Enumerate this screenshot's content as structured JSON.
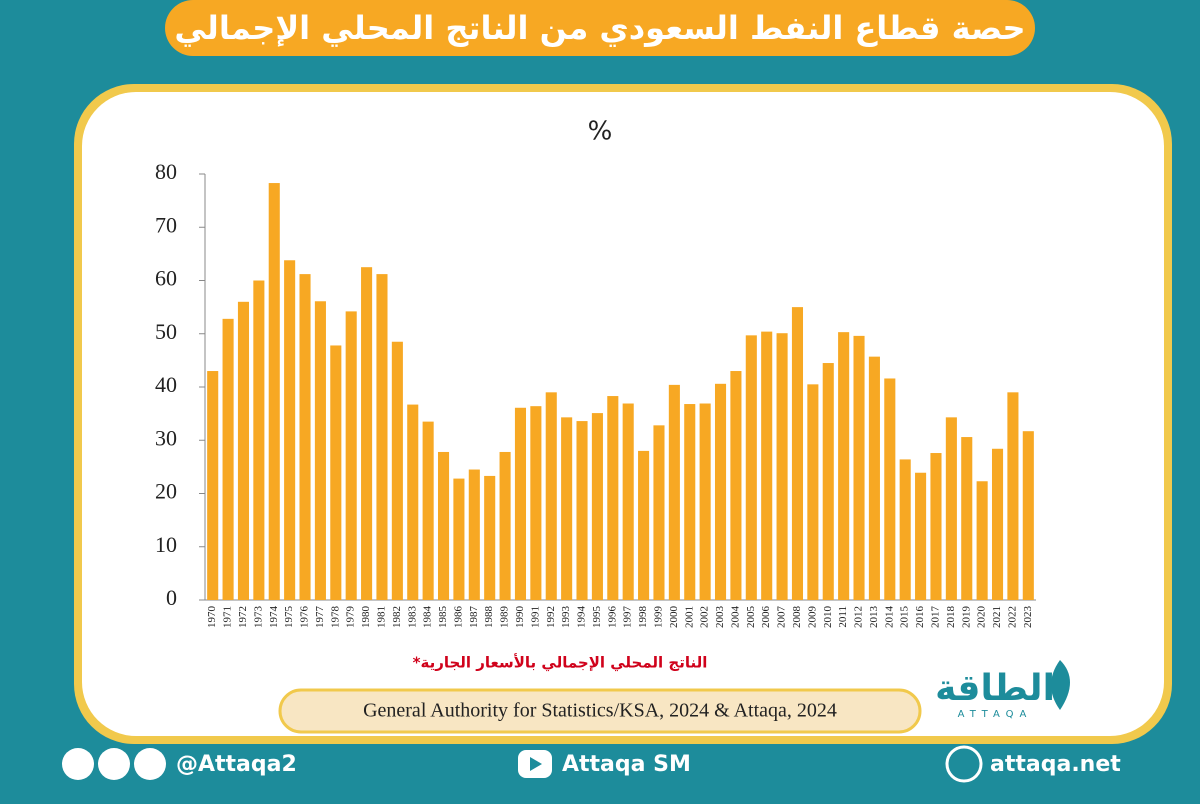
{
  "chart_data": {
    "type": "bar",
    "title": "حصة قطاع النفط السعودي من الناتج المحلي الإجمالي",
    "y_label": "%",
    "note": "*الناتج المحلي الإجمالي بالأسعار الجارية",
    "source": "General Authority for Statistics/KSA, 2024 & Attaqa, 2024",
    "categories": [
      "1970",
      "1971",
      "1972",
      "1973",
      "1974",
      "1975",
      "1976",
      "1977",
      "1978",
      "1979",
      "1980",
      "1981",
      "1982",
      "1983",
      "1984",
      "1985",
      "1986",
      "1987",
      "1988",
      "1989",
      "1990",
      "1991",
      "1992",
      "1993",
      "1994",
      "1995",
      "1996",
      "1997",
      "1998",
      "1999",
      "2000",
      "2001",
      "2002",
      "2003",
      "2004",
      "2005",
      "2006",
      "2007",
      "2008",
      "2009",
      "2010",
      "2011",
      "2012",
      "2013",
      "2014",
      "2015",
      "2016",
      "2017",
      "2018",
      "2019",
      "2020",
      "2021",
      "2022",
      "2023"
    ],
    "values": [
      43,
      52.8,
      56,
      60,
      78.3,
      63.8,
      61.2,
      56.1,
      47.8,
      54.2,
      62.5,
      61.2,
      48.5,
      36.7,
      33.5,
      27.8,
      22.8,
      24.5,
      23.3,
      27.8,
      36.1,
      36.4,
      39,
      34.3,
      33.6,
      35.1,
      38.3,
      36.9,
      28,
      32.8,
      40.4,
      36.8,
      36.9,
      40.6,
      43,
      49.7,
      50.4,
      50.1,
      55,
      40.5,
      44.5,
      50.3,
      49.6,
      45.7,
      41.6,
      26.4,
      23.9,
      27.6,
      34.3,
      30.6,
      22.3,
      28.4,
      39,
      31.7
    ],
    "color": "#f7a823",
    "ylim": [
      0,
      80
    ],
    "yticks": [
      0,
      10,
      20,
      30,
      40,
      50,
      60,
      70,
      80
    ],
    "grid": false
  },
  "logo": {
    "arabic": "الطاقة",
    "latin": "ATTAQA"
  },
  "footer": {
    "social": "@Attaqa2",
    "youtube": "Attaqa SM",
    "website": "attaqa.net"
  }
}
